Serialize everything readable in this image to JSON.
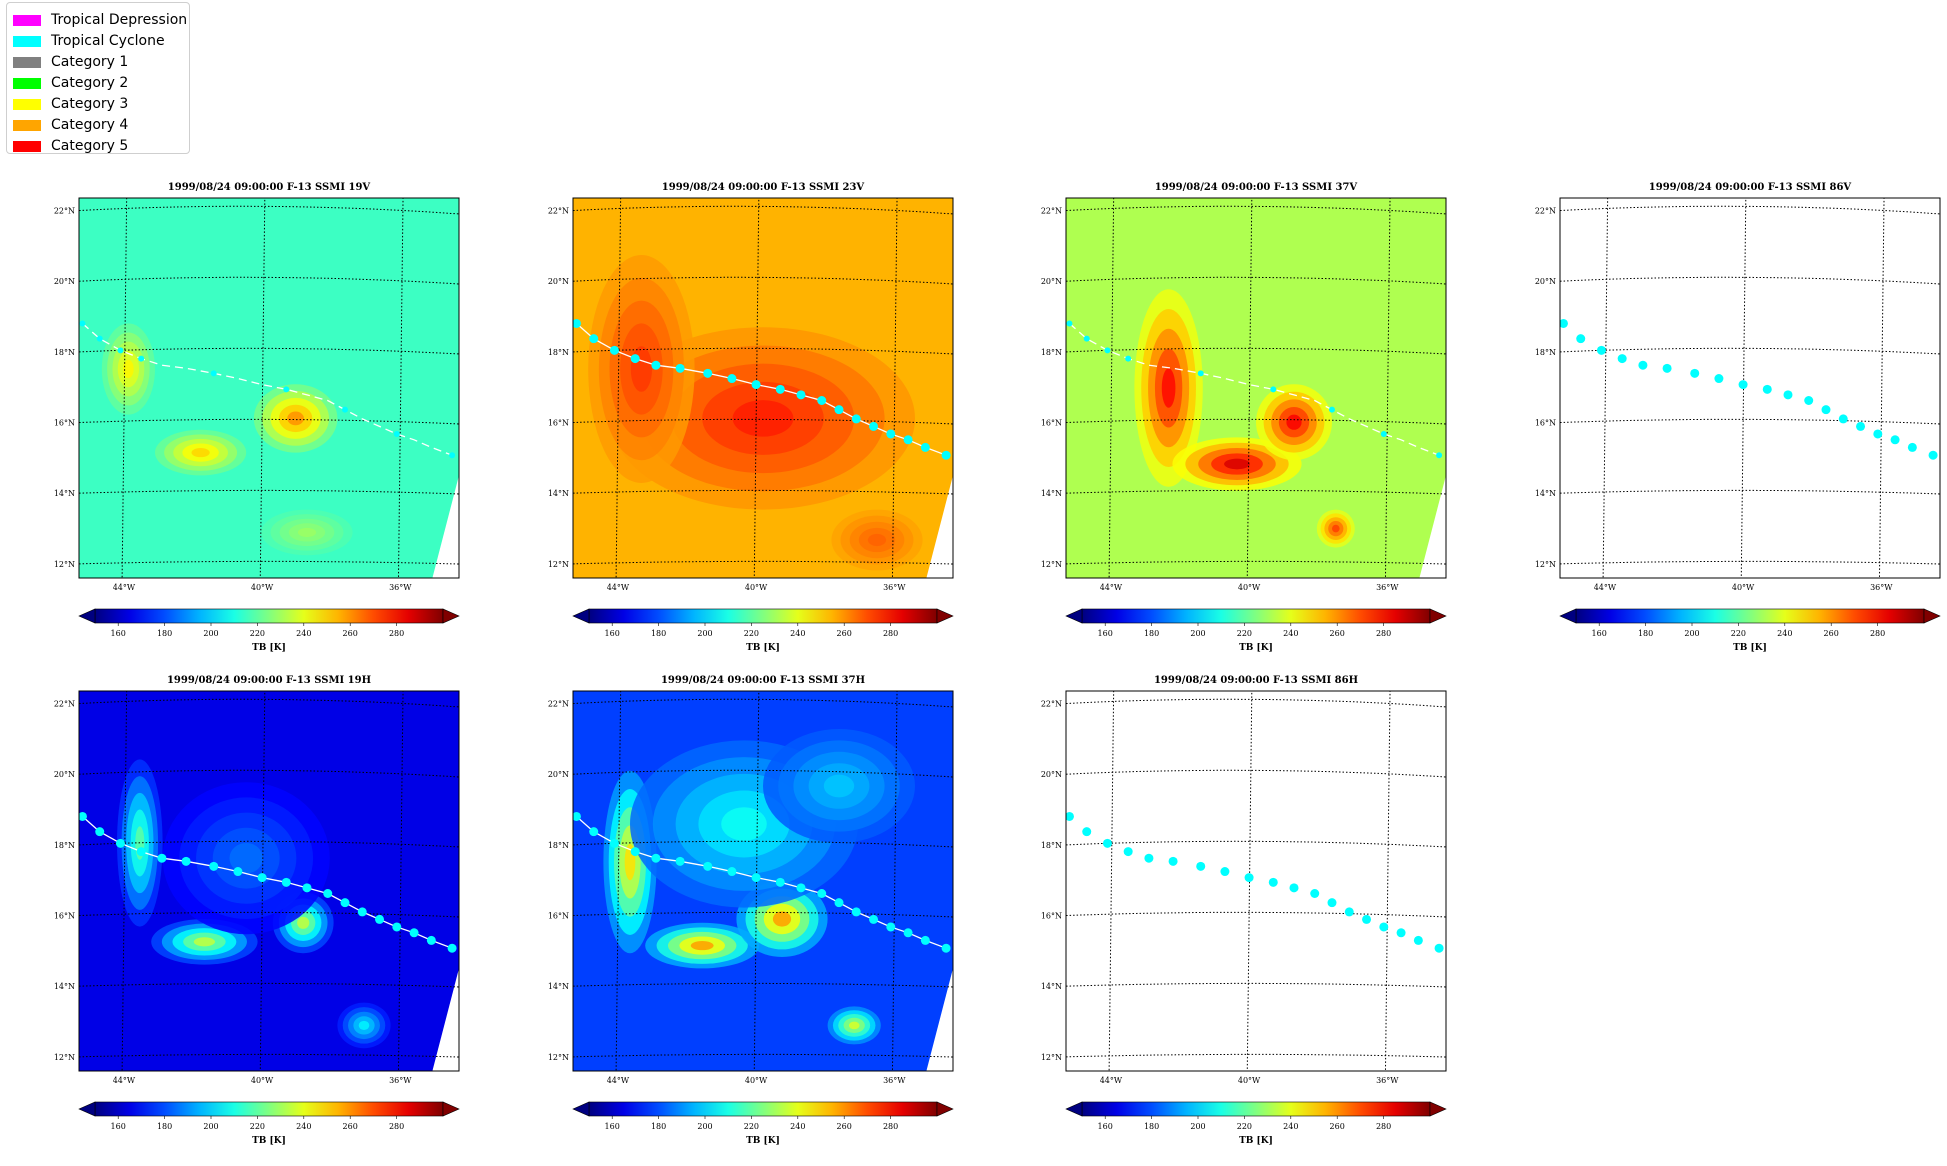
{
  "legend": {
    "entries": [
      {
        "label": "Tropical Depression",
        "color": "#ff00ff"
      },
      {
        "label": "Tropical Cyclone",
        "color": "#00ffff"
      },
      {
        "label": "Category 1",
        "color": "#808080"
      },
      {
        "label": "Category 2",
        "color": "#00ff00"
      },
      {
        "label": "Category 3",
        "color": "#ffff00"
      },
      {
        "label": "Category 4",
        "color": "#ffa500"
      },
      {
        "label": "Category 5",
        "color": "#ff0000"
      }
    ]
  },
  "map_axes": {
    "lon_ticks": [
      {
        "value": -44,
        "label": "44°W"
      },
      {
        "value": -40,
        "label": "40°W"
      },
      {
        "value": -36,
        "label": "36°W"
      }
    ],
    "lat_ticks": [
      {
        "value": 12,
        "label": "12°N"
      },
      {
        "value": 14,
        "label": "14°N"
      },
      {
        "value": 16,
        "label": "16°N"
      },
      {
        "value": 18,
        "label": "18°N"
      },
      {
        "value": 20,
        "label": "20°N"
      },
      {
        "value": 22,
        "label": "22°N"
      }
    ],
    "lon_range": [
      -45.3,
      -34.3
    ],
    "lat_range": [
      11.6,
      22.4
    ],
    "grid": "dotted"
  },
  "colorbar": {
    "label": "TB [K]",
    "range": [
      150,
      300
    ],
    "ticks": [
      160,
      180,
      200,
      220,
      240,
      260,
      280
    ],
    "colormap": "jet",
    "extend": "both"
  },
  "storm_track": {
    "color": "#00ffff",
    "points": [
      {
        "lon": -45.2,
        "lat": 18.8
      },
      {
        "lon": -44.7,
        "lat": 18.35
      },
      {
        "lon": -44.1,
        "lat": 18.0
      },
      {
        "lon": -43.5,
        "lat": 17.75
      },
      {
        "lon": -42.9,
        "lat": 17.55
      },
      {
        "lon": -42.2,
        "lat": 17.45
      },
      {
        "lon": -41.4,
        "lat": 17.3
      },
      {
        "lon": -40.7,
        "lat": 17.15
      },
      {
        "lon": -40.0,
        "lat": 16.98
      },
      {
        "lon": -39.3,
        "lat": 16.85
      },
      {
        "lon": -38.7,
        "lat": 16.7
      },
      {
        "lon": -38.1,
        "lat": 16.55
      },
      {
        "lon": -37.6,
        "lat": 16.3
      },
      {
        "lon": -37.1,
        "lat": 16.05
      },
      {
        "lon": -36.6,
        "lat": 15.85
      },
      {
        "lon": -36.1,
        "lat": 15.65
      },
      {
        "lon": -35.6,
        "lat": 15.5
      },
      {
        "lon": -35.1,
        "lat": 15.3
      },
      {
        "lon": -34.5,
        "lat": 15.1
      }
    ]
  },
  "chart_data": [
    {
      "type": "heatmap",
      "title": "1999/08/24 09:00:00  F-13 SSMI 19V",
      "channel": "19V",
      "colorbar_label": "TB [K]",
      "background_tb": 215,
      "track_style": "dashed",
      "track_points_shown": "partial"
    },
    {
      "type": "heatmap",
      "title": "1999/08/24 09:00:00  F-13 SSMI 23V",
      "channel": "23V",
      "colorbar_label": "TB [K]",
      "background_tb": 255,
      "track_style": "solid",
      "track_points_shown": "all"
    },
    {
      "type": "heatmap",
      "title": "1999/08/24 09:00:00  F-13 SSMI 37V",
      "channel": "37V",
      "colorbar_label": "TB [K]",
      "background_tb": 232,
      "track_style": "dashed",
      "track_points_shown": "partial"
    },
    {
      "type": "heatmap",
      "title": "1999/08/24 09:00:00  F-13 SSMI 86V",
      "channel": "86V",
      "colorbar_label": "TB [K]",
      "background_tb": null,
      "track_style": "points",
      "track_points_shown": "all"
    },
    {
      "type": "heatmap",
      "title": "1999/08/24 09:00:00  F-13 SSMI 19H",
      "channel": "19H",
      "colorbar_label": "TB [K]",
      "background_tb": 165,
      "track_style": "solid",
      "track_points_shown": "all"
    },
    {
      "type": "heatmap",
      "title": "1999/08/24 09:00:00  F-13 SSMI 37H",
      "channel": "37H",
      "colorbar_label": "TB [K]",
      "background_tb": 178,
      "track_style": "solid",
      "track_points_shown": "all"
    },
    {
      "type": "heatmap",
      "title": "1999/08/24 09:00:00  F-13 SSMI 86H",
      "channel": "86H",
      "colorbar_label": "TB [K]",
      "background_tb": null,
      "track_style": "points",
      "track_points_shown": "all"
    }
  ]
}
